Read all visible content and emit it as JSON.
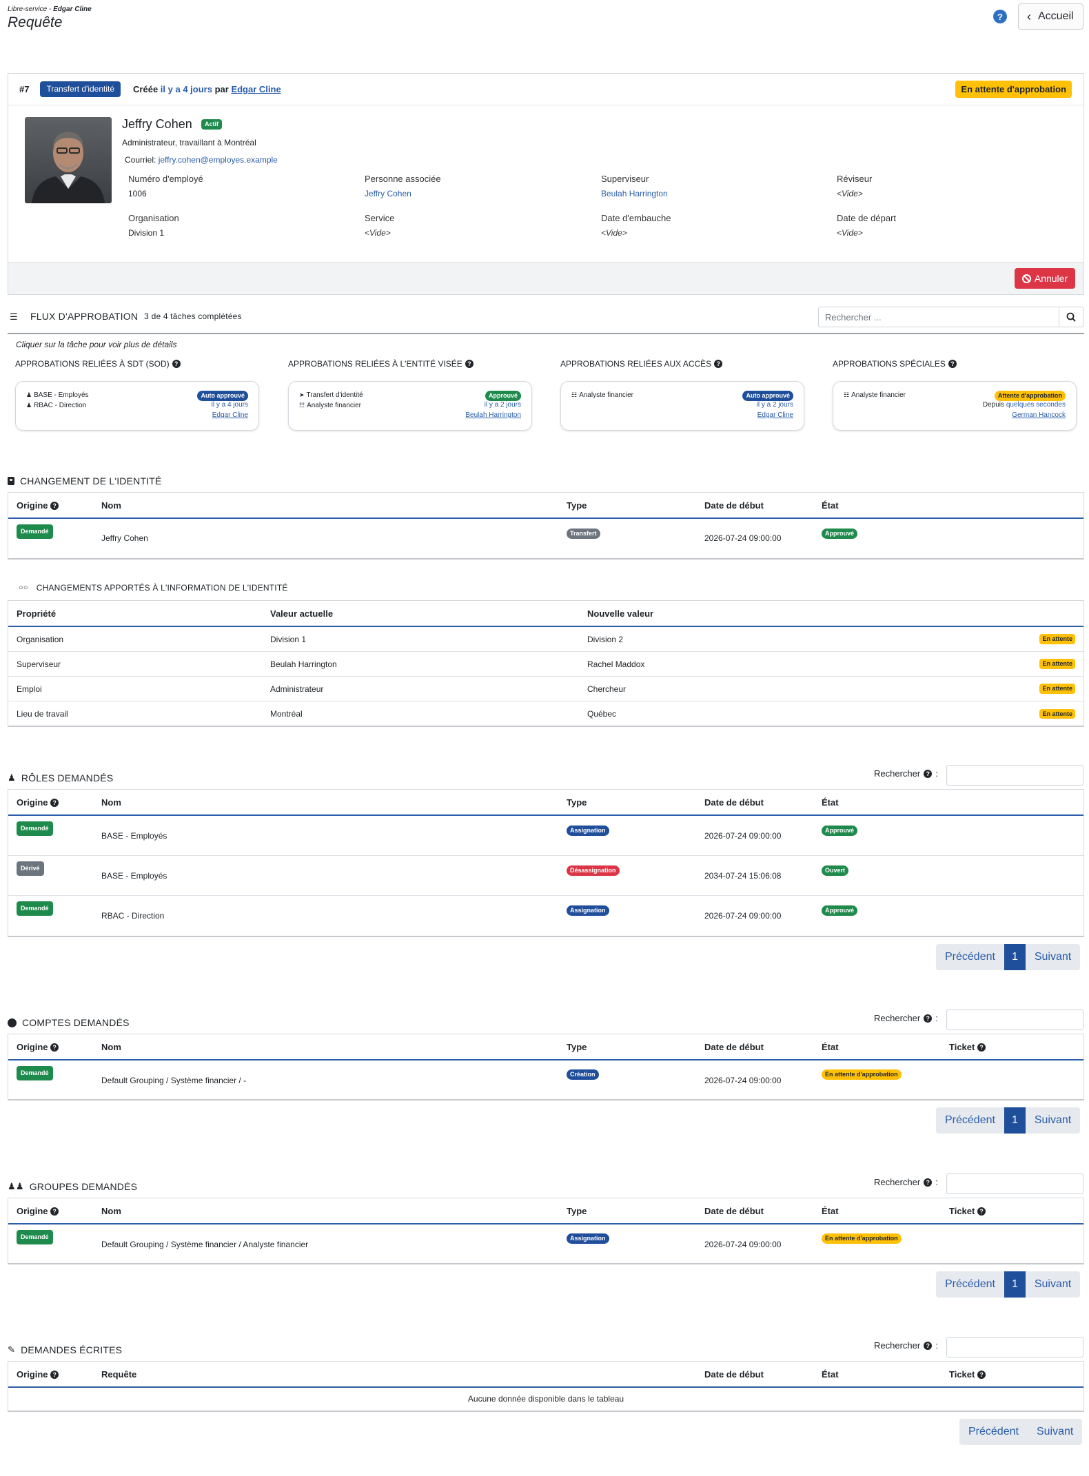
{
  "header": {
    "breadcrumb_prefix": "Libre-service - ",
    "breadcrumb_user": "Edgar Cline",
    "title": "Requête",
    "home_label": "Accueil"
  },
  "request": {
    "number": "#7",
    "type_badge": "Transfert d'identité",
    "created_label": "Créée",
    "created_ago": "il y a 4 jours",
    "by_label": "par",
    "creator": "Edgar Cline",
    "status": "En attente d'approbation",
    "cancel_label": "Annuler"
  },
  "identity": {
    "name": "Jeffry Cohen",
    "status_badge": "Actif",
    "subtitle": "Administrateur, travaillant à Montréal",
    "email_label": "Courriel:",
    "email": "jeffry.cohen@employes.example",
    "fields": [
      {
        "label": "Numéro d'employé",
        "value": "1006",
        "kind": "text"
      },
      {
        "label": "Personne associée",
        "value": "Jeffry Cohen",
        "kind": "link"
      },
      {
        "label": "Superviseur",
        "value": "Beulah Harrington",
        "kind": "link"
      },
      {
        "label": "Réviseur",
        "value": "<Vide>",
        "kind": "empty"
      },
      {
        "label": "Organisation",
        "value": "Division 1",
        "kind": "text"
      },
      {
        "label": "Service",
        "value": "<Vide>",
        "kind": "empty"
      },
      {
        "label": "Date d'embauche",
        "value": "<Vide>",
        "kind": "empty"
      },
      {
        "label": "Date de départ",
        "value": "<Vide>",
        "kind": "empty"
      }
    ]
  },
  "flow": {
    "title": "FLUX D'APPROBATION",
    "progress": "3 de 4 tâches complétées",
    "search_placeholder": "Rechercher ...",
    "hint": "Cliquer sur la tâche pour voir plus de détails",
    "columns": [
      {
        "title": "APPROBATIONS RELIÉES À SDT (SOD)",
        "items": [
          "BASE - Employés",
          "RBAC - Direction"
        ],
        "item_icons": [
          "person-icon",
          "person-icon"
        ],
        "badge": "Auto approuvé",
        "badge_color": "blue",
        "when_prefix": "",
        "when": "il y a 4 jours",
        "who": "Edgar Cline"
      },
      {
        "title": "APPROBATIONS RELIÉES À L'ENTITÉ VISÉE",
        "items": [
          "Transfert d'identité",
          "Analyste financier"
        ],
        "item_icons": [
          "circle-arrow-icon",
          "layers-icon"
        ],
        "badge": "Approuvé",
        "badge_color": "green",
        "when_prefix": "",
        "when": "il y a 2 jours",
        "who": "Beulah Harrington"
      },
      {
        "title": "APPROBATIONS RELIÉES AUX ACCÈS",
        "items": [
          "Analyste financier"
        ],
        "item_icons": [
          "layers-icon"
        ],
        "badge": "Auto approuvé",
        "badge_color": "blue",
        "when_prefix": "",
        "when": "il y a 2 jours",
        "who": "Edgar Cline"
      },
      {
        "title": "APPROBATIONS SPÉCIALES",
        "items": [
          "Analyste financier"
        ],
        "item_icons": [
          "layers-icon"
        ],
        "badge": "Attente d'approbation",
        "badge_color": "yellow",
        "when_prefix": "Depuis",
        "when": "quelques secondes",
        "who": "German Hancock"
      }
    ]
  },
  "identity_change": {
    "title": "CHANGEMENT DE L'IDENTITÉ",
    "headers": [
      "Origine",
      "Nom",
      "Type",
      "Date de début",
      "État"
    ],
    "rows": [
      {
        "origin": "Demandé",
        "name": "Jeffry Cohen",
        "type": "Transfert",
        "start": "2026-07-24 09:00:00",
        "state": "Approuvé"
      }
    ]
  },
  "info_changes": {
    "title": "CHANGEMENTS APPORTÉS À L'INFORMATION DE L'IDENTITÉ",
    "headers": [
      "Propriété",
      "Valeur actuelle",
      "Nouvelle valeur"
    ],
    "rows": [
      {
        "prop": "Organisation",
        "current": "Division 1",
        "new": "Division 2",
        "state": "En attente"
      },
      {
        "prop": "Superviseur",
        "current": "Beulah Harrington",
        "new": "Rachel Maddox",
        "state": "En attente"
      },
      {
        "prop": "Emploi",
        "current": "Administrateur",
        "new": "Chercheur",
        "state": "En attente"
      },
      {
        "prop": "Lieu de travail",
        "current": "Montréal",
        "new": "Québec",
        "state": "En attente"
      }
    ]
  },
  "search_label": "Rechercher",
  "pager": {
    "prev": "Précédent",
    "page": "1",
    "next": "Suivant"
  },
  "roles": {
    "title": "RÔLES DEMANDÉS",
    "headers": [
      "Origine",
      "Nom",
      "Type",
      "Date de début",
      "État"
    ],
    "rows": [
      {
        "origin": "Demandé",
        "origin_color": "green",
        "name": "BASE - Employés",
        "type": "Assignation",
        "type_color": "blue",
        "start": "2026-07-24 09:00:00",
        "state": "Approuvé",
        "state_color": "green"
      },
      {
        "origin": "Dérivé",
        "origin_color": "grey",
        "name": "BASE - Employés",
        "type": "Désassignation",
        "type_color": "red",
        "start": "2034-07-24 15:06:08",
        "state": "Ouvert",
        "state_color": "green"
      },
      {
        "origin": "Demandé",
        "origin_color": "green",
        "name": "RBAC - Direction",
        "type": "Assignation",
        "type_color": "blue",
        "start": "2026-07-24 09:00:00",
        "state": "Approuvé",
        "state_color": "green"
      }
    ]
  },
  "accounts": {
    "title": "COMPTES DEMANDÉS",
    "headers": [
      "Origine",
      "Nom",
      "Type",
      "Date de début",
      "État",
      "Ticket"
    ],
    "rows": [
      {
        "origin": "Demandé",
        "name": "Default Grouping / Système financier / -",
        "type": "Création",
        "start": "2026-07-24 09:00:00",
        "state": "En attente d'approbation"
      }
    ]
  },
  "groups": {
    "title": "GROUPES DEMANDÉS",
    "headers": [
      "Origine",
      "Nom",
      "Type",
      "Date de début",
      "État",
      "Ticket"
    ],
    "rows": [
      {
        "origin": "Demandé",
        "name": "Default Grouping / Système financier / Analyste financier",
        "type": "Assignation",
        "start": "2026-07-24 09:00:00",
        "state": "En attente d'approbation"
      }
    ]
  },
  "written": {
    "title": "DEMANDES ÉCRITES",
    "headers": [
      "Origine",
      "Requête",
      "Date de début",
      "État",
      "Ticket"
    ],
    "empty": "Aucune donnée disponible dans le tableau"
  },
  "colors": {
    "primary": "#1f4e9a",
    "success": "#1e8a4c",
    "warning": "#ffc107",
    "danger": "#dc3545",
    "secondary": "#6c757d",
    "link": "#2a5ca8"
  }
}
